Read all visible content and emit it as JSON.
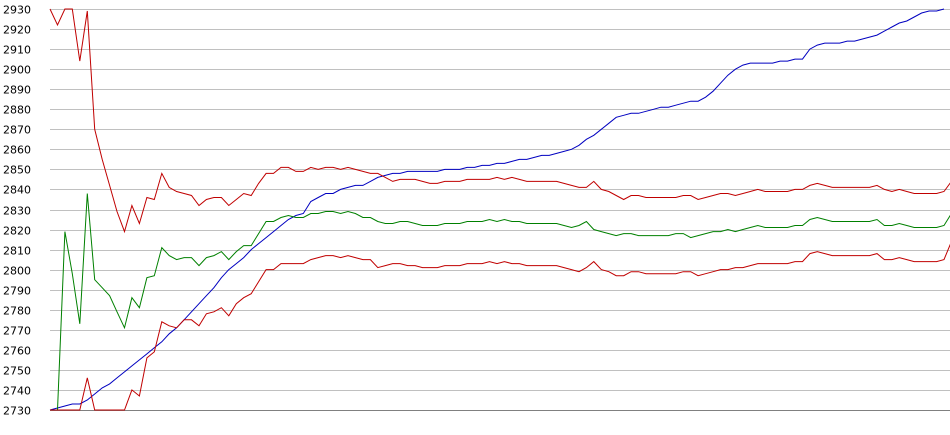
{
  "chart_data": {
    "type": "line",
    "title": "",
    "xlabel": "",
    "ylabel": "",
    "ylim": [
      2730,
      2930
    ],
    "yticks": [
      2730,
      2740,
      2750,
      2760,
      2770,
      2780,
      2790,
      2800,
      2810,
      2820,
      2830,
      2840,
      2850,
      2860,
      2870,
      2880,
      2890,
      2900,
      2910,
      2920,
      2930
    ],
    "xlim": [
      0,
      120
    ],
    "grid": true,
    "legend": "none",
    "series": [
      {
        "color": "#0000c0",
        "values": [
          2730,
          2731,
          2732,
          2733,
          2733,
          2735,
          2738,
          2741,
          2743,
          2746,
          2749,
          2752,
          2755,
          2758,
          2761,
          2764,
          2768,
          2771,
          2775,
          2779,
          2783,
          2787,
          2791,
          2796,
          2800,
          2803,
          2806,
          2810,
          2813,
          2816,
          2819,
          2822,
          2825,
          2827,
          2828,
          2834,
          2836,
          2838,
          2838,
          2840,
          2841,
          2842,
          2842,
          2844,
          2846,
          2847,
          2848,
          2848,
          2849,
          2849,
          2849,
          2849,
          2849,
          2850,
          2850,
          2850,
          2851,
          2851,
          2852,
          2852,
          2853,
          2853,
          2854,
          2855,
          2855,
          2856,
          2857,
          2857,
          2858,
          2859,
          2860,
          2862,
          2865,
          2867,
          2870,
          2873,
          2876,
          2877,
          2878,
          2878,
          2879,
          2880,
          2881,
          2881,
          2882,
          2883,
          2884,
          2884,
          2886,
          2889,
          2893,
          2897,
          2900,
          2902,
          2903,
          2903,
          2903,
          2903,
          2904,
          2904,
          2905,
          2905,
          2910,
          2912,
          2913,
          2913,
          2913,
          2914,
          2914,
          2915,
          2916,
          2917,
          2919,
          2921,
          2923,
          2924,
          2926,
          2928,
          2929,
          2929,
          2930
        ]
      },
      {
        "color": "#c00000",
        "values": [
          2930,
          2922,
          2930,
          2930,
          2904,
          2929,
          2870,
          2855,
          2842,
          2829,
          2819,
          2832,
          2823,
          2836,
          2835,
          2848,
          2841,
          2839,
          2838,
          2837,
          2832,
          2835,
          2836,
          2836,
          2832,
          2835,
          2838,
          2837,
          2843,
          2848,
          2848,
          2851,
          2851,
          2849,
          2849,
          2851,
          2850,
          2851,
          2851,
          2850,
          2851,
          2850,
          2849,
          2848,
          2848,
          2846,
          2844,
          2845,
          2845,
          2845,
          2844,
          2843,
          2843,
          2844,
          2844,
          2844,
          2845,
          2845,
          2845,
          2845,
          2846,
          2845,
          2846,
          2845,
          2844,
          2844,
          2844,
          2844,
          2844,
          2843,
          2842,
          2841,
          2841,
          2844,
          2840,
          2839,
          2837,
          2835,
          2837,
          2837,
          2836,
          2836,
          2836,
          2836,
          2836,
          2837,
          2837,
          2835,
          2836,
          2837,
          2838,
          2838,
          2837,
          2838,
          2839,
          2840,
          2839,
          2839,
          2839,
          2839,
          2840,
          2840,
          2842,
          2843,
          2842,
          2841,
          2841,
          2841,
          2841,
          2841,
          2841,
          2842,
          2840,
          2839,
          2840,
          2839,
          2838,
          2838,
          2838,
          2838,
          2839,
          2844
        ]
      },
      {
        "color": "#008000",
        "values": [
          2730,
          2730,
          2819,
          2798,
          2773,
          2838,
          2795,
          2791,
          2787,
          2779,
          2771,
          2786,
          2781,
          2796,
          2797,
          2811,
          2807,
          2805,
          2806,
          2806,
          2802,
          2806,
          2807,
          2809,
          2805,
          2809,
          2812,
          2812,
          2818,
          2824,
          2824,
          2826,
          2827,
          2826,
          2826,
          2828,
          2828,
          2829,
          2829,
          2828,
          2829,
          2828,
          2826,
          2826,
          2824,
          2823,
          2823,
          2824,
          2824,
          2823,
          2822,
          2822,
          2822,
          2823,
          2823,
          2823,
          2824,
          2824,
          2824,
          2825,
          2824,
          2825,
          2824,
          2824,
          2823,
          2823,
          2823,
          2823,
          2823,
          2822,
          2821,
          2822,
          2824,
          2820,
          2819,
          2818,
          2817,
          2818,
          2818,
          2817,
          2817,
          2817,
          2817,
          2817,
          2818,
          2818,
          2816,
          2817,
          2818,
          2819,
          2819,
          2820,
          2819,
          2820,
          2821,
          2822,
          2821,
          2821,
          2821,
          2821,
          2822,
          2822,
          2825,
          2826,
          2825,
          2824,
          2824,
          2824,
          2824,
          2824,
          2824,
          2825,
          2822,
          2822,
          2823,
          2822,
          2821,
          2821,
          2821,
          2821,
          2822,
          2828
        ]
      },
      {
        "color": "#c00000",
        "values": [
          2730,
          2730,
          2730,
          2730,
          2730,
          2746,
          2730,
          2730,
          2730,
          2730,
          2730,
          2740,
          2737,
          2756,
          2759,
          2774,
          2772,
          2771,
          2775,
          2775,
          2772,
          2778,
          2779,
          2781,
          2777,
          2783,
          2786,
          2788,
          2794,
          2800,
          2800,
          2803,
          2803,
          2803,
          2803,
          2805,
          2806,
          2807,
          2807,
          2806,
          2807,
          2806,
          2805,
          2805,
          2801,
          2802,
          2803,
          2803,
          2802,
          2802,
          2801,
          2801,
          2801,
          2802,
          2802,
          2802,
          2803,
          2803,
          2803,
          2804,
          2803,
          2804,
          2803,
          2803,
          2802,
          2802,
          2802,
          2802,
          2802,
          2801,
          2800,
          2799,
          2801,
          2804,
          2800,
          2799,
          2797,
          2797,
          2799,
          2799,
          2798,
          2798,
          2798,
          2798,
          2798,
          2799,
          2799,
          2797,
          2798,
          2799,
          2800,
          2800,
          2801,
          2801,
          2802,
          2803,
          2803,
          2803,
          2803,
          2803,
          2804,
          2804,
          2808,
          2809,
          2808,
          2807,
          2807,
          2807,
          2807,
          2807,
          2807,
          2808,
          2805,
          2805,
          2806,
          2805,
          2804,
          2804,
          2804,
          2804,
          2805,
          2814
        ]
      }
    ]
  }
}
